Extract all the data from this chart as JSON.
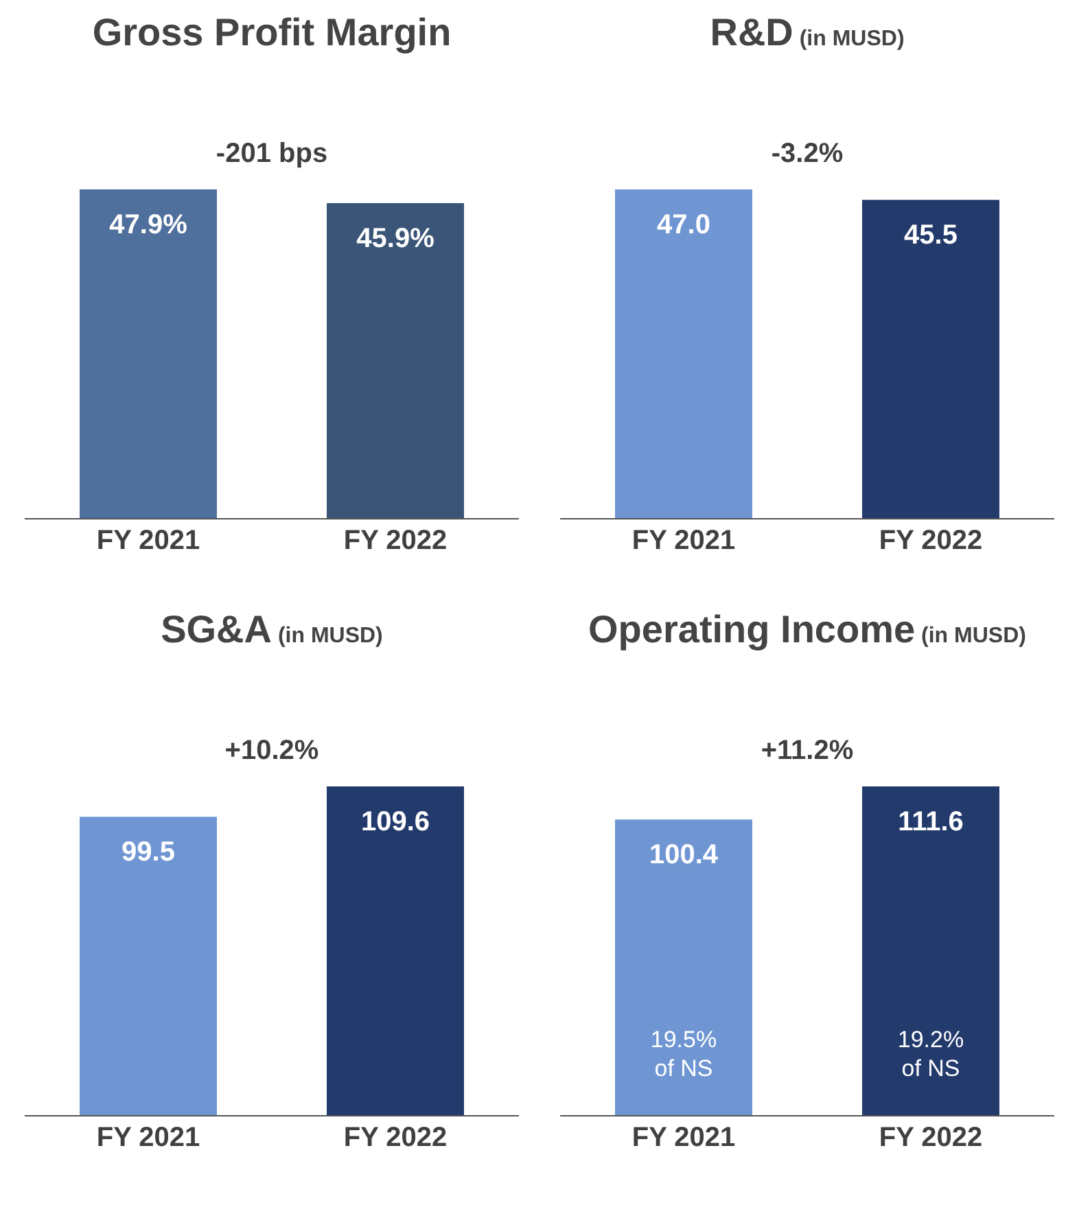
{
  "chart_data": [
    {
      "type": "bar",
      "title": "Gross Profit Margin",
      "categories": [
        "FY 2021",
        "FY 2022"
      ],
      "values": [
        47.9,
        45.9
      ],
      "colors": [
        "#4f6f9c",
        "#3a5577"
      ],
      "value_labels": [
        "47.9%",
        "45.9%"
      ],
      "annotations": [
        "-201 bps"
      ]
    },
    {
      "type": "bar",
      "title": "R&D",
      "subtitle": "(in MUSD)",
      "categories": [
        "FY 2021",
        "FY 2022"
      ],
      "values": [
        47.0,
        45.5
      ],
      "colors": [
        "#6f96d3",
        "#233a6c"
      ],
      "value_labels": [
        "47.0",
        "45.5"
      ],
      "annotations": [
        "-3.2%"
      ]
    },
    {
      "type": "bar",
      "title": "SG&A",
      "subtitle": "(in MUSD)",
      "categories": [
        "FY 2021",
        "FY 2022"
      ],
      "values": [
        99.5,
        109.6
      ],
      "colors": [
        "#6f96d3",
        "#233a6c"
      ],
      "value_labels": [
        "99.5",
        "109.6"
      ],
      "annotations": [
        "+10.2%"
      ]
    },
    {
      "type": "bar",
      "title": "Operating Income",
      "subtitle": "(in MUSD)",
      "categories": [
        "FY 2021",
        "FY 2022"
      ],
      "values": [
        100.4,
        111.6
      ],
      "colors": [
        "#6f96d3",
        "#233a6c"
      ],
      "value_labels": [
        "100.4",
        "111.6"
      ],
      "annotations": [
        "+11.2%",
        "19.5% of NS",
        "19.2% of NS"
      ]
    }
  ]
}
